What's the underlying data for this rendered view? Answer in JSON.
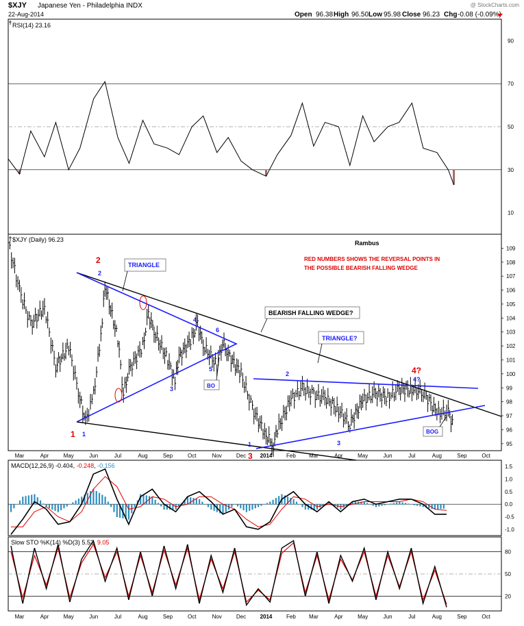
{
  "header": {
    "symbol": "$XJY",
    "name": "Japanese Yen - Philadelphia INDX",
    "date": "22-Aug-2014",
    "open_label": "Open",
    "open": "96.38",
    "high_label": "High",
    "high": "96.50",
    "low_label": "Low",
    "low": "95.98",
    "close_label": "Close",
    "close": "96.23",
    "chg_label": "Chg",
    "chg": "-0.08 (-0.09%)",
    "watermark": "@ StockCharts.com"
  },
  "colors": {
    "price": "#000000",
    "annotation": "#1a1aff",
    "reversal": "#e00000",
    "rsi_fill": "#a06a6a",
    "macd_line": "#000000",
    "macd_signal": "#e00000",
    "macd_hist": "#2f8fc0",
    "sto_k": "#000000",
    "sto_d": "#e00000"
  },
  "chart_data": [
    {
      "type": "line",
      "panel": "rsi",
      "title": "RSI(14) 23.16",
      "ylim": [
        0,
        100
      ],
      "y_ticks": [
        10,
        30,
        50,
        70,
        90
      ],
      "reference_lines": [
        30,
        50,
        70
      ],
      "series": [
        {
          "x": [
            "2013-02-15",
            "2013-03-01",
            "2013-03-15",
            "2013-04-01",
            "2013-04-15",
            "2013-05-01",
            "2013-05-15",
            "2013-06-01",
            "2013-06-15",
            "2013-07-01",
            "2013-07-15",
            "2013-08-01",
            "2013-08-15",
            "2013-09-01",
            "2013-09-15",
            "2013-10-01",
            "2013-10-15",
            "2013-11-01",
            "2013-11-15",
            "2013-12-01",
            "2013-12-15",
            "2014-01-01",
            "2014-01-15",
            "2014-02-01",
            "2014-02-15",
            "2014-03-01",
            "2014-03-15",
            "2014-04-01",
            "2014-04-15",
            "2014-05-01",
            "2014-05-15",
            "2014-06-01",
            "2014-06-15",
            "2014-07-01",
            "2014-07-15",
            "2014-08-01",
            "2014-08-15",
            "2014-08-22"
          ],
          "values": [
            35,
            28,
            48,
            36,
            52,
            30,
            40,
            63,
            71,
            45,
            33,
            53,
            42,
            40,
            37,
            50,
            55,
            38,
            45,
            34,
            30,
            27,
            37,
            46,
            61,
            41,
            52,
            50,
            32,
            55,
            43,
            50,
            52,
            61,
            40,
            38,
            30,
            23
          ]
        }
      ]
    },
    {
      "type": "line",
      "panel": "price",
      "title": "$XJY (Daily) 96.23",
      "ylim": [
        94.5,
        110
      ],
      "y_ticks": [
        95,
        96,
        97,
        98,
        99,
        100,
        101,
        102,
        103,
        104,
        105,
        106,
        107,
        108,
        109
      ],
      "x_tick_labels": [
        "Mar",
        "Apr",
        "May",
        "Jun",
        "Jul",
        "Aug",
        "Sep",
        "Oct",
        "Nov",
        "Dec",
        "2014",
        "Feb",
        "Mar",
        "Apr",
        "May",
        "Jun",
        "Jul",
        "Aug",
        "Sep",
        "Oct"
      ],
      "series": [
        {
          "x": [
            "2013-02-15",
            "2013-03-01",
            "2013-03-15",
            "2013-04-01",
            "2013-04-15",
            "2013-05-01",
            "2013-05-15",
            "2013-05-22",
            "2013-06-01",
            "2013-06-10",
            "2013-06-15",
            "2013-07-01",
            "2013-07-08",
            "2013-07-15",
            "2013-08-01",
            "2013-08-08",
            "2013-08-15",
            "2013-09-01",
            "2013-09-10",
            "2013-09-15",
            "2013-10-01",
            "2013-10-08",
            "2013-10-15",
            "2013-11-01",
            "2013-11-08",
            "2013-11-15",
            "2013-12-01",
            "2013-12-15",
            "2014-01-01",
            "2014-01-10",
            "2014-01-15",
            "2014-02-01",
            "2014-02-15",
            "2014-03-01",
            "2014-03-15",
            "2014-04-01",
            "2014-04-15",
            "2014-05-01",
            "2014-05-15",
            "2014-06-01",
            "2014-06-15",
            "2014-07-01",
            "2014-07-15",
            "2014-08-01",
            "2014-08-15",
            "2014-08-22"
          ],
          "values": [
            109.4,
            106.0,
            103.5,
            104.8,
            100.5,
            102.0,
            98.2,
            96.6,
            98.5,
            102.8,
            106.3,
            102.5,
            98.6,
            100.3,
            102.0,
            104.3,
            103.0,
            101.0,
            99.5,
            101.2,
            102.6,
            103.6,
            102.0,
            100.6,
            102.3,
            101.4,
            100.0,
            97.5,
            95.6,
            94.9,
            96.0,
            98.2,
            99.0,
            98.5,
            98.3,
            97.4,
            96.4,
            98.1,
            98.6,
            98.3,
            98.9,
            98.9,
            98.7,
            97.2,
            97.3,
            96.2
          ]
        }
      ],
      "annotations": [
        "Rambus",
        "RED NUMBERS SHOWS THE REVERSAL POINTS IN",
        "THE POSSIBLE BEARISH FALLING WEDGE",
        "TRIANGLE",
        "BEARISH FALLING WEDGE?",
        "TRIANGLE?",
        "BO",
        "BOG"
      ],
      "wave_labels_blue": [
        "1",
        "2",
        "3",
        "4",
        "5",
        "6",
        "1",
        "2",
        "3",
        "4?"
      ],
      "wave_labels_red": [
        "1",
        "2",
        "3",
        "4?"
      ]
    },
    {
      "type": "line",
      "panel": "macd",
      "title": "MACD(12,26,9) -0.404, -0.248, -0.156",
      "title_parts": [
        "MACD(12,26,9)",
        "-0.404",
        "-0.248",
        "-0.156"
      ],
      "ylim": [
        -1.25,
        1.75
      ],
      "y_ticks": [
        -1.0,
        -0.5,
        0.0,
        0.5,
        1.0,
        1.5
      ],
      "y_tick_labels": [
        "-1.0",
        "-0.5",
        "0.0",
        "0.5",
        "1.0",
        "1.5"
      ],
      "series": [
        {
          "name": "MACD",
          "values": [
            -1.2,
            -0.6,
            0.1,
            -0.2,
            -0.8,
            -0.7,
            0.0,
            1.2,
            1.4,
            0.2,
            -0.8,
            0.3,
            0.6,
            0.0,
            -0.3,
            0.3,
            0.5,
            0.1,
            -0.4,
            -0.2,
            -0.9,
            -1.0,
            -0.7,
            0.2,
            0.5,
            0.0,
            -0.3,
            0.1,
            -0.3,
            0.1,
            0.2,
            0.0,
            0.1,
            0.2,
            0.2,
            0.0,
            -0.4,
            -0.4
          ]
        },
        {
          "name": "Signal",
          "values": [
            -0.9,
            -0.9,
            -0.3,
            -0.1,
            -0.5,
            -0.7,
            -0.3,
            0.6,
            1.1,
            0.7,
            -0.2,
            -0.1,
            0.3,
            0.2,
            -0.1,
            0.0,
            0.3,
            0.3,
            0.0,
            -0.2,
            -0.6,
            -0.9,
            -0.8,
            -0.2,
            0.3,
            0.2,
            -0.1,
            0.0,
            -0.1,
            0.0,
            0.1,
            0.1,
            0.1,
            0.1,
            0.2,
            0.1,
            -0.2,
            -0.25
          ]
        }
      ]
    },
    {
      "type": "line",
      "panel": "stochastic",
      "title": "Slow STO %K(14) %D(3) 5.53, 9.05",
      "title_parts": [
        "Slow STO %K(14) %D(3) 5.53,",
        "9.05"
      ],
      "ylim": [
        0,
        100
      ],
      "y_ticks": [
        20,
        50,
        80
      ],
      "reference_lines": [
        20,
        50,
        80
      ],
      "x_tick_labels": [
        "Mar",
        "Apr",
        "May",
        "Jun",
        "Jul",
        "Aug",
        "Sep",
        "Oct",
        "Nov",
        "Dec",
        "2014",
        "Feb",
        "Mar",
        "Apr",
        "May",
        "Jun",
        "Jul",
        "Aug",
        "Sep",
        "Oct"
      ],
      "series": [
        {
          "name": "%K",
          "values": [
            88,
            10,
            85,
            30,
            90,
            12,
            70,
            95,
            40,
            85,
            15,
            80,
            20,
            88,
            30,
            90,
            10,
            75,
            25,
            85,
            8,
            30,
            12,
            85,
            95,
            20,
            80,
            10,
            75,
            40,
            85,
            15,
            80,
            30,
            85,
            10,
            60,
            5
          ]
        },
        {
          "name": "%D",
          "values": [
            80,
            18,
            75,
            35,
            85,
            18,
            65,
            90,
            45,
            80,
            20,
            75,
            25,
            82,
            35,
            85,
            15,
            70,
            30,
            80,
            12,
            28,
            15,
            78,
            92,
            25,
            75,
            15,
            70,
            42,
            80,
            20,
            75,
            33,
            80,
            15,
            55,
            9
          ]
        }
      ]
    }
  ]
}
